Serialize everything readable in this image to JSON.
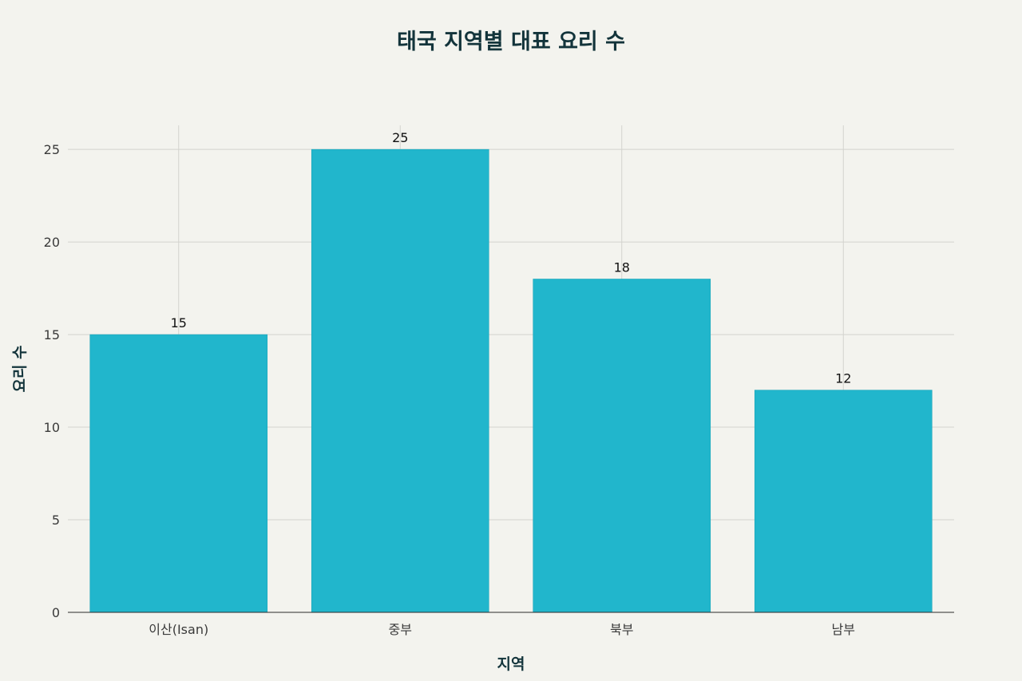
{
  "page": {
    "background": "#F3F3EE"
  },
  "chart_data": {
    "type": "bar",
    "title": "태국 지역별 대표 요리 수",
    "xlabel": "지역",
    "ylabel": "요리 수",
    "categories": [
      "이산(Isan)",
      "중부",
      "북부",
      "남부"
    ],
    "values": [
      15,
      25,
      18,
      12
    ],
    "yticks": [
      0,
      5,
      10,
      15,
      20,
      25
    ],
    "ylim": [
      0,
      26.3
    ],
    "grid": true,
    "bar_color": "#21B6CC",
    "title_color": "#13343B"
  }
}
